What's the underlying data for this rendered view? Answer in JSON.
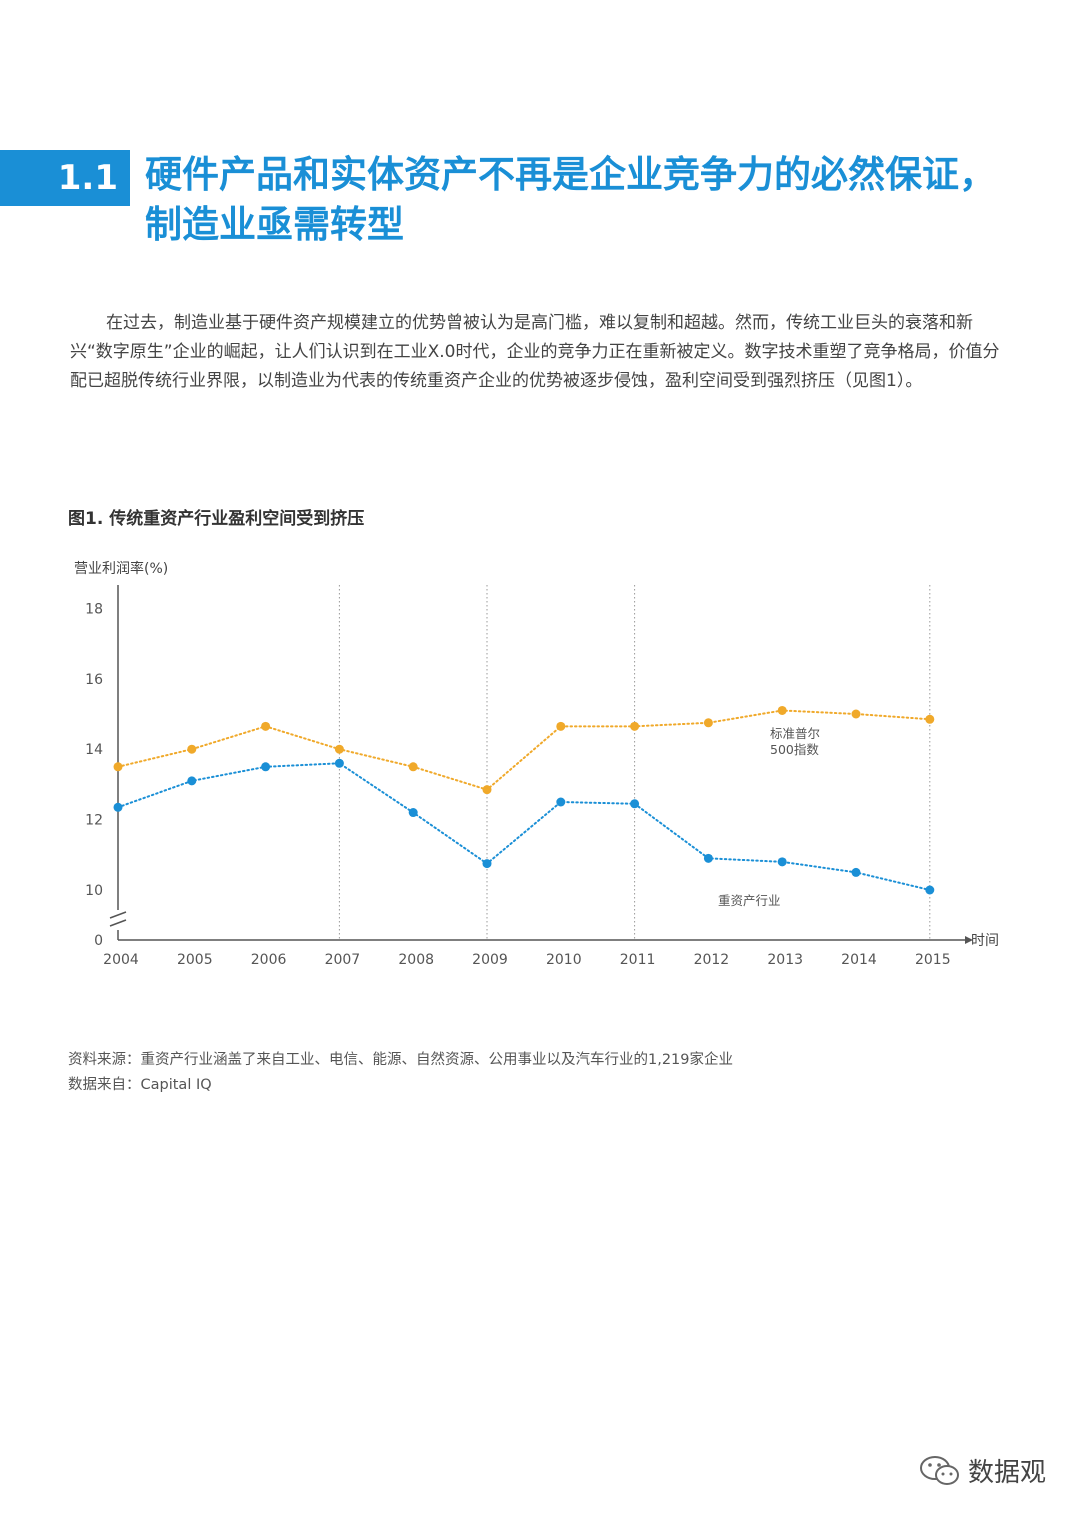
{
  "section": {
    "number": "1.1",
    "title_line1": "硬件产品和实体资产不再是企业竞争力的必然保证，",
    "title_line2": "制造业亟需转型"
  },
  "body_paragraph": "在过去，制造业基于硬件资产规模建立的优势曾被认为是高门槛，难以复制和超越。然而，传统工业巨头的衰落和新兴“数字原生”企业的崛起，让人们认识到在工业X.0时代，企业的竞争力正在重新被定义。数字技术重塑了竞争格局，价值分配已超脱传统行业界限，以制造业为代表的传统重资产企业的优势被逐步侵蚀，盈利空间受到强烈挤压（见图1）。",
  "figure_title": "图1. 传统重资产行业盈利空间受到挤压",
  "chart_data": {
    "type": "line",
    "ylabel": "营业利润率(%)",
    "xlabel": "时间",
    "x": [
      "2004",
      "2005",
      "2006",
      "2007",
      "2008",
      "2009",
      "2010",
      "2011",
      "2012",
      "2013",
      "2014",
      "2015"
    ],
    "yticks": [
      "0",
      "10",
      "12",
      "14",
      "16",
      "18"
    ],
    "ylim": [
      9,
      18.5
    ],
    "y_axis_break": true,
    "grid": "vertical dotted lines at 2007, 2009, 2011, 2015",
    "vlines": [
      "2007",
      "2009",
      "2011",
      "2015"
    ],
    "legend": "inline labels next to lines",
    "series": [
      {
        "name": "标准普尔500指数",
        "label_lines": [
          "标准普尔",
          "500指数"
        ],
        "color": "#f0a92a",
        "values": [
          13.5,
          14.0,
          14.65,
          14.0,
          13.5,
          12.85,
          14.65,
          14.65,
          14.75,
          15.1,
          15.0,
          14.85
        ]
      },
      {
        "name": "重资产行业",
        "label_lines": [
          "重资产行业"
        ],
        "color": "#1a8fd6",
        "values": [
          12.35,
          13.1,
          13.5,
          13.6,
          12.2,
          10.75,
          12.5,
          12.45,
          10.9,
          10.8,
          10.5,
          10.0
        ]
      }
    ]
  },
  "footnotes": {
    "source_note": "资料来源：重资产行业涵盖了来自工业、电信、能源、自然资源、公用事业以及汽车行业的1,219家企业",
    "data_from": "数据来自：Capital IQ"
  },
  "watermark": {
    "text": "数据观",
    "icon": "wechat-icon"
  }
}
